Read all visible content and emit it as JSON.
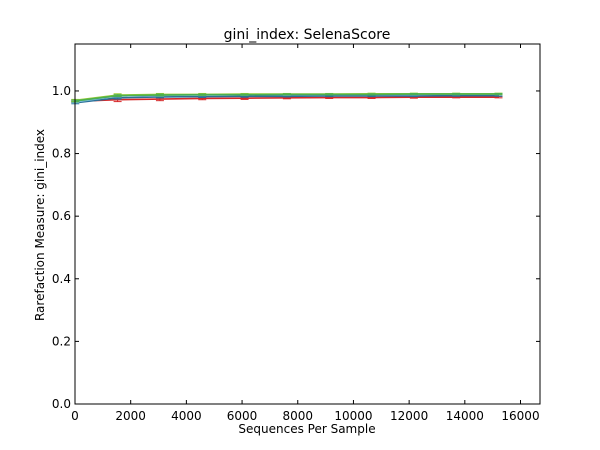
{
  "chart_data": {
    "type": "line",
    "title": "gini_index: SelenaScore",
    "xlabel": "Sequences Per Sample",
    "ylabel": "Rarefaction Measure: gini_index",
    "xlim": [
      0,
      16700
    ],
    "ylim": [
      0.0,
      1.15
    ],
    "xticks": [
      0,
      2000,
      4000,
      6000,
      8000,
      10000,
      12000,
      14000,
      16000
    ],
    "yticks": [
      0.0,
      0.2,
      0.4,
      0.6,
      0.8,
      1.0
    ],
    "xtick_labels": [
      "0",
      "2000",
      "4000",
      "6000",
      "8000",
      "10000",
      "12000",
      "14000",
      "16000"
    ],
    "ytick_labels": [
      "0.0",
      "0.2",
      "0.4",
      "0.6",
      "0.8",
      "1.0"
    ],
    "grid": false,
    "x": [
      10,
      1530,
      3050,
      4570,
      6090,
      7610,
      9130,
      10650,
      12170,
      13690,
      15210
    ],
    "series": [
      {
        "color": "#d62728",
        "values": [
          0.967,
          0.972,
          0.974,
          0.976,
          0.977,
          0.978,
          0.979,
          0.979,
          0.98,
          0.98,
          0.98
        ],
        "errors": [
          0.003,
          0.006,
          0.005,
          0.004,
          0.004,
          0.003,
          0.003,
          0.003,
          0.003,
          0.002,
          0.002
        ]
      },
      {
        "color": "#2a6f97",
        "values": [
          0.962,
          0.978,
          0.981,
          0.982,
          0.983,
          0.983,
          0.984,
          0.984,
          0.984,
          0.985,
          0.985
        ],
        "errors": [
          0.003,
          0.004,
          0.003,
          0.003,
          0.003,
          0.002,
          0.002,
          0.002,
          0.002,
          0.002,
          0.002
        ]
      },
      {
        "color": "#7fbfe0",
        "values": [
          0.965,
          0.984,
          0.986,
          0.987,
          0.988,
          0.988,
          0.989,
          0.989,
          0.989,
          0.99,
          0.99
        ],
        "errors": [
          0.003,
          0.003,
          0.003,
          0.002,
          0.002,
          0.002,
          0.002,
          0.002,
          0.002,
          0.002,
          0.002
        ]
      },
      {
        "color": "#9acd32",
        "values": [
          0.97,
          0.987,
          0.989,
          0.989,
          0.99,
          0.99,
          0.99,
          0.991,
          0.991,
          0.991,
          0.991
        ],
        "errors": [
          0.003,
          0.004,
          0.003,
          0.003,
          0.002,
          0.002,
          0.002,
          0.002,
          0.002,
          0.002,
          0.002
        ]
      },
      {
        "color": "#4caf50",
        "values": [
          0.968,
          0.985,
          0.987,
          0.988,
          0.988,
          0.989,
          0.989,
          0.989,
          0.99,
          0.99,
          0.99
        ],
        "errors": [
          0.003,
          0.003,
          0.003,
          0.002,
          0.002,
          0.002,
          0.002,
          0.002,
          0.002,
          0.002,
          0.002
        ]
      }
    ]
  }
}
